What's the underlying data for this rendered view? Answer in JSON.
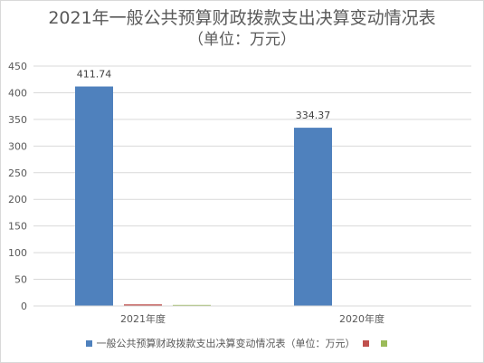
{
  "chart_data": {
    "type": "bar",
    "title": "2021年一般公共预算财政拨款支出决算变动情况表",
    "subtitle": "（单位：万元）",
    "categories": [
      "2021年度",
      "2020年度"
    ],
    "series": [
      {
        "name": "一般公共预算财政拨款支出决算变动情况表（单位：万元）",
        "values": [
          411.74,
          334.37
        ],
        "color": "#4f81bd"
      },
      {
        "values": [
          3,
          0
        ],
        "color": "#c0504d"
      },
      {
        "values": [
          2,
          0
        ],
        "color": "#9bbb59"
      }
    ],
    "data_labels": [
      "411.74",
      "334.37"
    ],
    "ylim": [
      0,
      450
    ],
    "yticks": [
      "0",
      "50",
      "100",
      "150",
      "200",
      "250",
      "300",
      "350",
      "400",
      "450"
    ],
    "grid": true,
    "legend": "bottom"
  }
}
